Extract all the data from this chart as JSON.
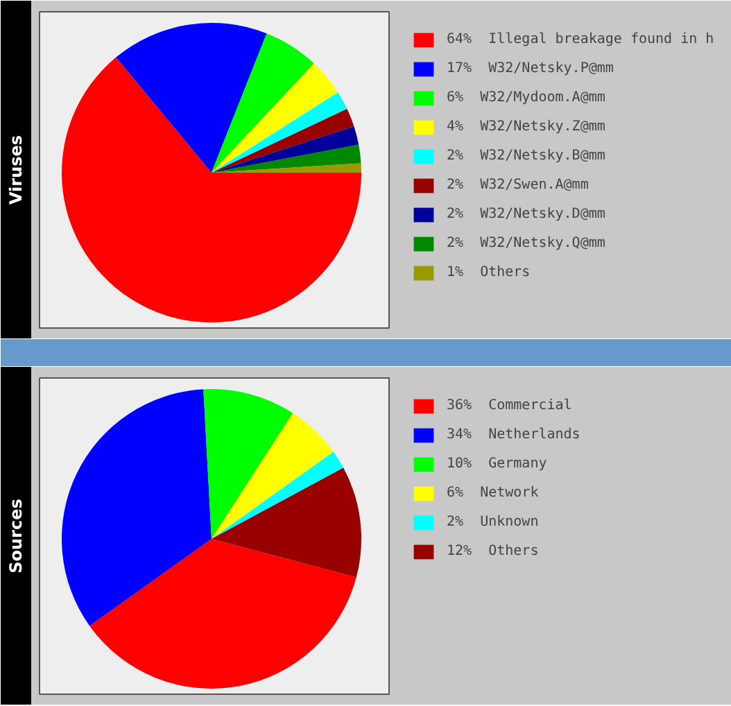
{
  "chart_data": [
    {
      "type": "pie",
      "title": "Viruses",
      "legend": "right",
      "categories": [
        "Illegal breakage found in h",
        "W32/Netsky.P@mm",
        "W32/Mydoom.A@mm",
        "W32/Netsky.Z@mm",
        "W32/Netsky.B@mm",
        "W32/Swen.A@mm",
        "W32/Netsky.D@mm",
        "W32/Netsky.Q@mm",
        "Others"
      ],
      "values": [
        64,
        17,
        6,
        4,
        2,
        2,
        2,
        2,
        1
      ],
      "value_labels": [
        "64%",
        "17%",
        "6%",
        "4%",
        "2%",
        "2%",
        "2%",
        "2%",
        "1%"
      ],
      "colors": [
        "#ff0000",
        "#0000ff",
        "#00ff00",
        "#ffff00",
        "#00ffff",
        "#990000",
        "#000099",
        "#008800",
        "#999900"
      ]
    },
    {
      "type": "pie",
      "title": "Sources",
      "legend": "right",
      "categories": [
        "Commercial",
        "Netherlands",
        "Germany",
        "Network",
        "Unknown",
        "Others"
      ],
      "values": [
        36,
        34,
        10,
        6,
        2,
        12
      ],
      "value_labels": [
        "36%",
        "34%",
        "10%",
        "6%",
        "2%",
        "12%"
      ],
      "colors": [
        "#ff0000",
        "#0000ff",
        "#00ff00",
        "#ffff00",
        "#00ffff",
        "#990000"
      ]
    }
  ]
}
